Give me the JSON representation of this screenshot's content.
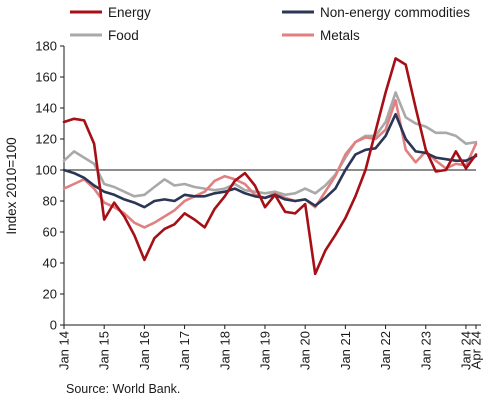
{
  "chart_data": {
    "type": "line",
    "ylabel": "Index 2010=100",
    "ylim": [
      0,
      180
    ],
    "yticks": [
      0,
      20,
      40,
      60,
      80,
      100,
      120,
      140,
      160,
      180
    ],
    "reference_line": 100,
    "grid": false,
    "legend_position": "top",
    "x_tick_labels": [
      "Jan 14",
      "Jan 15",
      "Jan 16",
      "Jan 17",
      "Jan 18",
      "Jan 19",
      "Jan 20",
      "Jan 21",
      "Jan 22",
      "Jan 23",
      "Jan 24",
      "Apr 24"
    ],
    "x": [
      "2014-01",
      "2014-04",
      "2014-07",
      "2014-10",
      "2015-01",
      "2015-04",
      "2015-07",
      "2015-10",
      "2016-01",
      "2016-04",
      "2016-07",
      "2016-10",
      "2017-01",
      "2017-04",
      "2017-07",
      "2017-10",
      "2018-01",
      "2018-04",
      "2018-07",
      "2018-10",
      "2019-01",
      "2019-04",
      "2019-07",
      "2019-10",
      "2020-01",
      "2020-04",
      "2020-07",
      "2020-10",
      "2021-01",
      "2021-04",
      "2021-07",
      "2021-10",
      "2022-01",
      "2022-04",
      "2022-07",
      "2022-10",
      "2023-01",
      "2023-04",
      "2023-07",
      "2023-10",
      "2024-01",
      "2024-04"
    ],
    "series": [
      {
        "name": "Energy",
        "color": "#a50f15",
        "values": [
          131,
          133,
          132,
          117,
          68,
          79,
          70,
          58,
          42,
          56,
          62,
          65,
          72,
          68,
          63,
          75,
          83,
          93,
          98,
          90,
          76,
          84,
          73,
          72,
          78,
          33,
          48,
          58,
          69,
          83,
          100,
          125,
          150,
          172,
          168,
          140,
          113,
          99,
          100,
          112,
          101,
          110
        ]
      },
      {
        "name": "Non-energy commodities",
        "color": "#2b3555",
        "values": [
          100,
          98,
          95,
          90,
          86,
          84,
          81,
          79,
          76,
          80,
          81,
          80,
          84,
          83,
          83,
          85,
          86,
          88,
          85,
          83,
          82,
          84,
          81,
          80,
          81,
          77,
          82,
          88,
          100,
          110,
          113,
          114,
          122,
          136,
          120,
          112,
          111,
          108,
          107,
          106,
          106,
          109
        ]
      },
      {
        "name": "Food",
        "color": "#a9a9a9",
        "values": [
          106,
          112,
          108,
          104,
          91,
          89,
          86,
          83,
          84,
          89,
          94,
          90,
          91,
          89,
          88,
          87,
          88,
          91,
          87,
          86,
          85,
          86,
          84,
          85,
          88,
          85,
          90,
          97,
          108,
          118,
          122,
          122,
          131,
          150,
          134,
          130,
          128,
          124,
          124,
          122,
          117,
          118
        ]
      },
      {
        "name": "Metals",
        "color": "#e08080",
        "values": [
          88,
          91,
          94,
          88,
          79,
          76,
          72,
          66,
          63,
          66,
          70,
          74,
          80,
          83,
          86,
          93,
          96,
          94,
          91,
          84,
          82,
          85,
          82,
          80,
          81,
          76,
          86,
          96,
          110,
          118,
          121,
          120,
          126,
          145,
          113,
          105,
          112,
          106,
          101,
          104,
          103,
          117
        ]
      }
    ],
    "source": "Source: World Bank."
  }
}
